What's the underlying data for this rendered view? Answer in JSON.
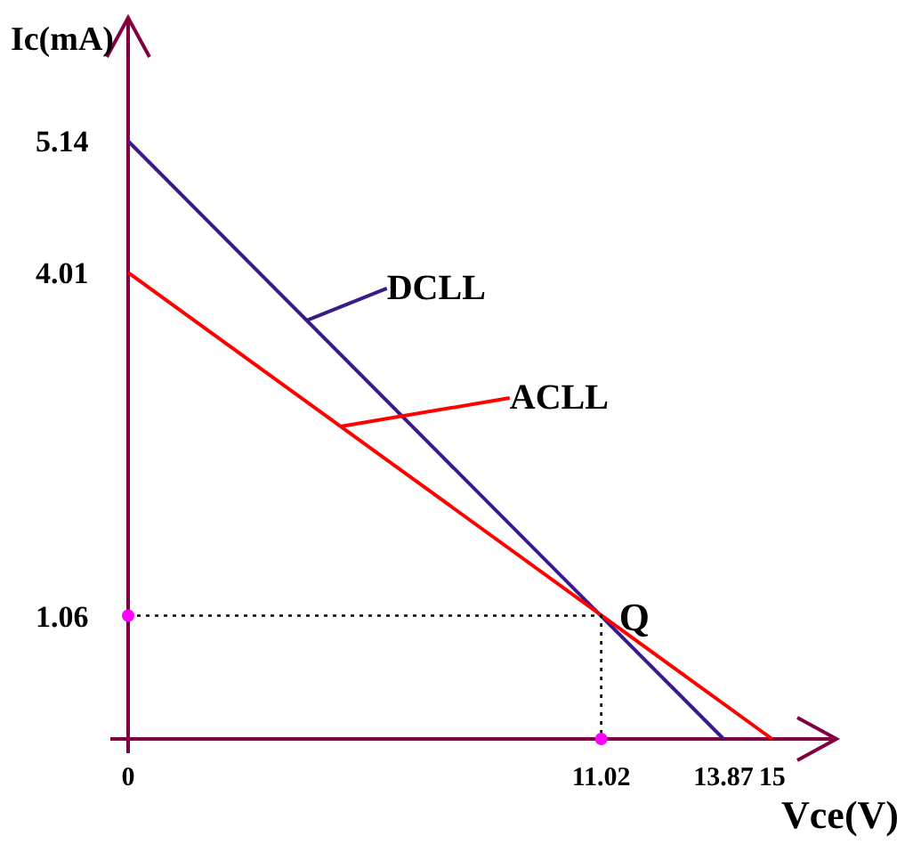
{
  "chart_data": {
    "type": "line",
    "xlabel": "Vce(V)",
    "ylabel": "Ic(mA)",
    "xlim": [
      0,
      16.5
    ],
    "ylim": [
      0,
      6.2
    ],
    "xticks": [
      0,
      11.02,
      13.87,
      15
    ],
    "yticks": [
      1.06,
      4.01,
      5.14
    ],
    "grid": false,
    "legend": "top",
    "marker": "none",
    "annotations": [
      {
        "text": "Q",
        "x": 11.02,
        "y": 1.06
      }
    ],
    "series": [
      {
        "name": "DCLL",
        "color": "#3a1a8a",
        "x": [
          0,
          13.87
        ],
        "values": [
          5.14,
          0
        ]
      },
      {
        "name": "ACLL",
        "color": "#ff0000",
        "x": [
          0,
          15
        ],
        "values": [
          4.01,
          0
        ]
      },
      {
        "type": "line",
        "color": "#000000",
        "line_style": "dotted",
        "x": [
          0,
          11.02,
          11.02
        ],
        "values": [
          1.06,
          1.06,
          0
        ]
      },
      {
        "type": "scatter",
        "marker": "circle",
        "color": "#ff00ff",
        "x": [
          0,
          11.02
        ],
        "values": [
          1.06,
          0
        ]
      }
    ]
  }
}
